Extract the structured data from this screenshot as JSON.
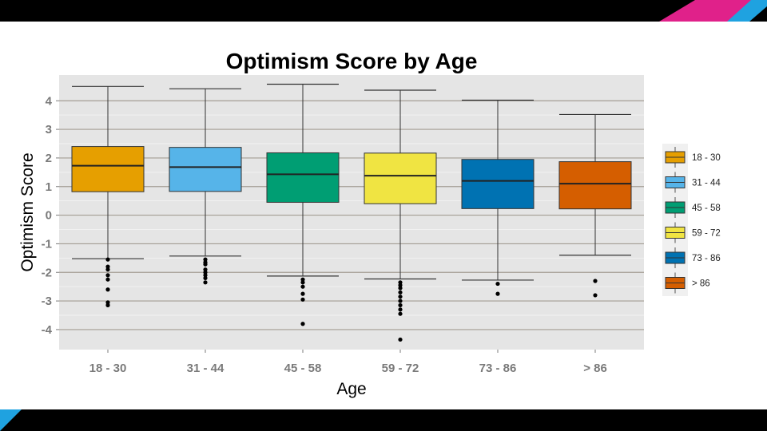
{
  "chart_data": {
    "type": "box",
    "title": "Optimism Score by Age",
    "xlabel": "Age",
    "ylabel": "Optimism Score",
    "ylim": [
      -4.7,
      4.9
    ],
    "y_ticks": [
      -4,
      -3,
      -2,
      -1,
      0,
      1,
      2,
      3,
      4
    ],
    "grid": true,
    "legend_position": "right",
    "categories": [
      "18 - 30",
      "31 - 44",
      "45 - 58",
      "59 - 72",
      "73 - 86",
      "> 86"
    ],
    "series": [
      {
        "name": "18 - 30",
        "color": "#E69F00",
        "whisker_low": -1.52,
        "q1": 0.82,
        "median": 1.73,
        "q3": 2.4,
        "whisker_high": 4.5,
        "outliers": [
          -1.55,
          -1.8,
          -1.9,
          -2.1,
          -2.25,
          -2.6,
          -3.05,
          -3.15
        ]
      },
      {
        "name": "31 - 44",
        "color": "#56B4E9",
        "whisker_low": -1.43,
        "q1": 0.83,
        "median": 1.68,
        "q3": 2.37,
        "whisker_high": 4.42,
        "outliers": [
          -1.55,
          -1.65,
          -1.72,
          -1.9,
          -2.0,
          -2.1,
          -2.2,
          -2.35
        ]
      },
      {
        "name": "45 - 58",
        "color": "#009E73",
        "whisker_low": -2.13,
        "q1": 0.45,
        "median": 1.43,
        "q3": 2.18,
        "whisker_high": 4.58,
        "outliers": [
          -2.25,
          -2.35,
          -2.5,
          -2.75,
          -2.95,
          -3.8
        ]
      },
      {
        "name": "59 - 72",
        "color": "#F0E442",
        "whisker_low": -2.23,
        "q1": 0.4,
        "median": 1.38,
        "q3": 2.17,
        "whisker_high": 4.37,
        "outliers": [
          -2.35,
          -2.45,
          -2.55,
          -2.7,
          -2.85,
          -3.0,
          -3.15,
          -3.3,
          -3.45,
          -4.35
        ]
      },
      {
        "name": "73 - 86",
        "color": "#0072B2",
        "whisker_low": -2.27,
        "q1": 0.23,
        "median": 1.2,
        "q3": 1.95,
        "whisker_high": 4.02,
        "outliers": [
          -2.4,
          -2.75
        ]
      },
      {
        "name": "> 86",
        "color": "#D55E00",
        "whisker_low": -1.4,
        "q1": 0.22,
        "median": 1.1,
        "q3": 1.87,
        "whisker_high": 3.52,
        "outliers": [
          -2.3,
          -2.8
        ]
      }
    ]
  }
}
